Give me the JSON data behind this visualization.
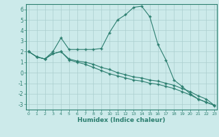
{
  "xlabel": "Humidex (Indice chaleur)",
  "x": [
    0,
    1,
    2,
    3,
    4,
    5,
    6,
    7,
    8,
    9,
    10,
    11,
    12,
    13,
    14,
    15,
    16,
    17,
    18,
    19,
    20,
    21,
    22,
    23
  ],
  "line1": [
    2.0,
    1.5,
    1.3,
    2.0,
    3.3,
    2.2,
    2.2,
    2.2,
    2.2,
    2.3,
    3.8,
    5.0,
    5.5,
    6.2,
    6.3,
    5.3,
    2.7,
    1.2,
    -0.7,
    -1.3,
    -2.0,
    -2.5,
    -2.8,
    -3.1
  ],
  "line2": [
    2.0,
    1.5,
    1.3,
    1.8,
    2.0,
    1.3,
    1.1,
    1.0,
    0.8,
    0.5,
    0.3,
    0.0,
    -0.2,
    -0.4,
    -0.5,
    -0.7,
    -0.8,
    -1.0,
    -1.2,
    -1.5,
    -1.8,
    -2.2,
    -2.5,
    -3.1
  ],
  "line3": [
    2.0,
    1.5,
    1.3,
    1.8,
    2.0,
    1.2,
    1.0,
    0.8,
    0.5,
    0.2,
    -0.1,
    -0.3,
    -0.5,
    -0.7,
    -0.8,
    -1.0,
    -1.1,
    -1.3,
    -1.5,
    -1.8,
    -2.1,
    -2.5,
    -2.8,
    -3.1
  ],
  "line_color": "#2a7d6e",
  "bg_color": "#cceaea",
  "grid_color": "#aacece",
  "ylim": [
    -3.5,
    6.5
  ],
  "xlim": [
    -0.3,
    23.3
  ],
  "yticks": [
    -3,
    -2,
    -1,
    0,
    1,
    2,
    3,
    4,
    5,
    6
  ],
  "xticks": [
    0,
    1,
    2,
    3,
    4,
    5,
    6,
    7,
    8,
    9,
    10,
    11,
    12,
    13,
    14,
    15,
    16,
    17,
    18,
    19,
    20,
    21,
    22,
    23
  ]
}
